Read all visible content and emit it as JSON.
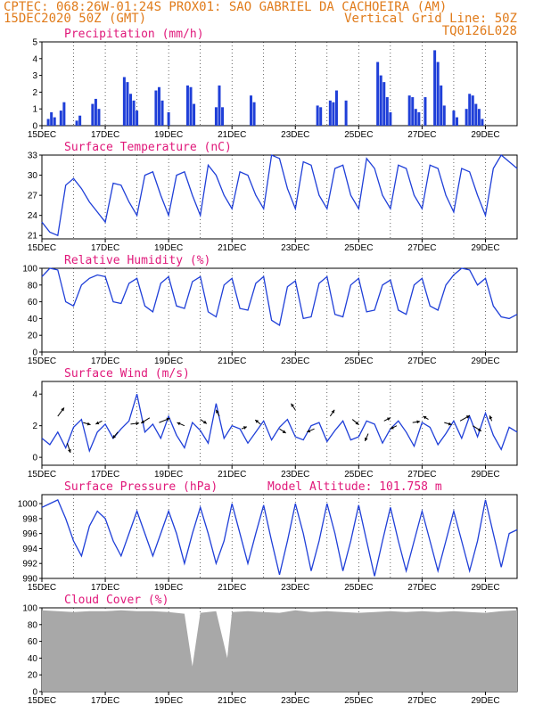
{
  "header": {
    "line1_left": "CPTEC:  068:26W-01:24S  PROX01: SAO GABRIEL DA CACHOEIRA (AM)",
    "line2_left": "15DEC2020 50Z (GMT)",
    "line2_right": "Vertical Grid Line: 50Z",
    "line3_right": "TQ0126L028"
  },
  "colors": {
    "header": "#e07b1a",
    "panel_title": "#e0187a",
    "series": "#1f3fd8",
    "cloud": "#a8a8a8",
    "grid": "#000000"
  },
  "x_axis": {
    "ticks": [
      "15DEC",
      "17DEC",
      "19DEC",
      "21DEC",
      "23DEC",
      "25DEC",
      "27DEC",
      "29DEC"
    ],
    "start_day": 15,
    "end_day": 30
  },
  "chart_data": [
    {
      "id": "precipitation",
      "type": "bar",
      "title": "Precipitation (mm/h)",
      "ylim": [
        0,
        5
      ],
      "yticks": [
        0,
        1,
        2,
        3,
        4,
        5
      ],
      "x": [
        15.2,
        15.3,
        15.4,
        15.6,
        15.7,
        16.1,
        16.2,
        16.6,
        16.7,
        16.8,
        17.6,
        17.7,
        17.8,
        17.9,
        18.0,
        18.6,
        18.7,
        18.8,
        19.0,
        19.6,
        19.7,
        19.8,
        20.5,
        20.6,
        20.7,
        21.6,
        21.7,
        23.7,
        23.8,
        24.1,
        24.2,
        24.3,
        24.6,
        25.6,
        25.7,
        25.8,
        25.9,
        26.0,
        26.6,
        26.7,
        26.8,
        26.9,
        27.1,
        27.4,
        27.5,
        27.6,
        27.7,
        28.0,
        28.1,
        28.4,
        28.5,
        28.6,
        28.7,
        28.8,
        28.9
      ],
      "values": [
        0.4,
        0.8,
        0.5,
        0.9,
        1.4,
        0.3,
        0.6,
        1.3,
        1.6,
        1.0,
        2.9,
        2.6,
        1.9,
        1.5,
        0.9,
        2.1,
        2.3,
        1.5,
        0.8,
        2.4,
        2.3,
        1.3,
        1.1,
        2.4,
        1.1,
        1.8,
        1.4,
        1.2,
        1.1,
        1.5,
        1.4,
        2.1,
        1.5,
        3.8,
        3.0,
        2.6,
        1.7,
        0.8,
        1.8,
        1.7,
        1.0,
        0.8,
        1.7,
        4.5,
        3.8,
        2.4,
        1.2,
        0.9,
        0.5,
        1.0,
        1.9,
        1.8,
        1.3,
        1.0,
        0.4
      ]
    },
    {
      "id": "surface_temperature",
      "type": "line",
      "title": "Surface Temperature (nC)",
      "ylim": [
        20.5,
        33
      ],
      "yticks": [
        21,
        24,
        27,
        30,
        33
      ],
      "x": [
        15.0,
        15.25,
        15.5,
        15.75,
        16.0,
        16.25,
        16.5,
        16.75,
        17.0,
        17.25,
        17.5,
        17.75,
        18.0,
        18.25,
        18.5,
        18.75,
        19.0,
        19.25,
        19.5,
        19.75,
        20.0,
        20.25,
        20.5,
        20.75,
        21.0,
        21.25,
        21.5,
        21.75,
        22.0,
        22.25,
        22.5,
        22.75,
        23.0,
        23.25,
        23.5,
        23.75,
        24.0,
        24.25,
        24.5,
        24.75,
        25.0,
        25.25,
        25.5,
        25.75,
        26.0,
        26.25,
        26.5,
        26.75,
        27.0,
        27.25,
        27.5,
        27.75,
        28.0,
        28.25,
        28.5,
        28.75,
        29.0,
        29.25,
        29.5,
        29.75,
        30.0
      ],
      "values": [
        23,
        21.5,
        21,
        28.5,
        29.5,
        28,
        26,
        24.5,
        23,
        28.8,
        28.5,
        26,
        24,
        30,
        30.5,
        27,
        24,
        30,
        30.5,
        27,
        24,
        31.5,
        30,
        27,
        25,
        30.5,
        30,
        27,
        25,
        33,
        32.5,
        28,
        25,
        32,
        31.5,
        27,
        25,
        31,
        31.5,
        27,
        25,
        32.5,
        31,
        27,
        25,
        31.5,
        31,
        27,
        25,
        31.5,
        31,
        27,
        24.5,
        31,
        30.5,
        27,
        24,
        31,
        33,
        32,
        31
      ]
    },
    {
      "id": "relative_humidity",
      "type": "line",
      "title": "Relative Humidity (%)",
      "ylim": [
        0,
        100
      ],
      "yticks": [
        0,
        20,
        40,
        60,
        80,
        100
      ],
      "x": [
        15.0,
        15.25,
        15.5,
        15.75,
        16.0,
        16.25,
        16.5,
        16.75,
        17.0,
        17.25,
        17.5,
        17.75,
        18.0,
        18.25,
        18.5,
        18.75,
        19.0,
        19.25,
        19.5,
        19.75,
        20.0,
        20.25,
        20.5,
        20.75,
        21.0,
        21.25,
        21.5,
        21.75,
        22.0,
        22.25,
        22.5,
        22.75,
        23.0,
        23.25,
        23.5,
        23.75,
        24.0,
        24.25,
        24.5,
        24.75,
        25.0,
        25.25,
        25.5,
        25.75,
        26.0,
        26.25,
        26.5,
        26.75,
        27.0,
        27.25,
        27.5,
        27.75,
        28.0,
        28.25,
        28.5,
        28.75,
        29.0,
        29.25,
        29.5,
        29.75,
        30.0
      ],
      "values": [
        90,
        100,
        98,
        60,
        55,
        80,
        88,
        92,
        90,
        60,
        58,
        82,
        88,
        55,
        48,
        82,
        90,
        55,
        52,
        84,
        90,
        48,
        42,
        80,
        88,
        52,
        50,
        82,
        90,
        38,
        32,
        78,
        85,
        40,
        42,
        82,
        90,
        45,
        42,
        80,
        88,
        48,
        50,
        80,
        86,
        50,
        45,
        80,
        88,
        55,
        50,
        80,
        92,
        100,
        98,
        80,
        88,
        55,
        42,
        40,
        45
      ]
    },
    {
      "id": "surface_wind",
      "type": "line",
      "title": "Surface Wind (m/s)",
      "ylim": [
        -0.5,
        4.8
      ],
      "yticks": [
        0,
        2,
        4
      ],
      "x": [
        15.0,
        15.25,
        15.5,
        15.75,
        16.0,
        16.25,
        16.5,
        16.75,
        17.0,
        17.25,
        17.5,
        17.75,
        18.0,
        18.25,
        18.5,
        18.75,
        19.0,
        19.25,
        19.5,
        19.75,
        20.0,
        20.25,
        20.5,
        20.75,
        21.0,
        21.25,
        21.5,
        21.75,
        22.0,
        22.25,
        22.5,
        22.75,
        23.0,
        23.25,
        23.5,
        23.75,
        24.0,
        24.25,
        24.5,
        24.75,
        25.0,
        25.25,
        25.5,
        25.75,
        26.0,
        26.25,
        26.5,
        26.75,
        27.0,
        27.25,
        27.5,
        27.75,
        28.0,
        28.25,
        28.5,
        28.75,
        29.0,
        29.25,
        29.5,
        29.75,
        30.0
      ],
      "values": [
        1.2,
        0.8,
        1.6,
        0.6,
        1.9,
        2.4,
        0.4,
        1.6,
        2.1,
        1.2,
        1.8,
        2.3,
        4.0,
        1.6,
        2.1,
        1.2,
        2.6,
        1.4,
        0.6,
        2.2,
        1.7,
        0.9,
        3.4,
        1.2,
        2.0,
        1.8,
        0.9,
        1.6,
        2.3,
        1.1,
        1.9,
        2.4,
        1.3,
        1.1,
        2.0,
        2.2,
        1.0,
        1.7,
        2.3,
        1.1,
        1.3,
        2.3,
        2.1,
        0.9,
        1.8,
        2.3,
        1.6,
        0.7,
        2.2,
        1.9,
        0.8,
        1.5,
        2.3,
        1.2,
        2.6,
        1.3,
        2.8,
        1.4,
        0.5,
        1.9,
        1.6
      ],
      "arrows": [
        {
          "x": 15.5,
          "y": 2.6,
          "dx": 0.6,
          "dy": -0.8
        },
        {
          "x": 15.8,
          "y": 0.9,
          "dx": 0.3,
          "dy": 0.9
        },
        {
          "x": 16.3,
          "y": 2.2,
          "dx": 0.7,
          "dy": 0.2
        },
        {
          "x": 16.9,
          "y": 2.3,
          "dx": -0.6,
          "dy": 0.3
        },
        {
          "x": 17.4,
          "y": 1.6,
          "dx": -0.5,
          "dy": 0.6
        },
        {
          "x": 17.8,
          "y": 2.1,
          "dx": 0.8,
          "dy": -0.1
        },
        {
          "x": 18.4,
          "y": 2.5,
          "dx": -0.8,
          "dy": 0.5
        },
        {
          "x": 18.7,
          "y": 2.2,
          "dx": 1.0,
          "dy": -0.4
        },
        {
          "x": 19.5,
          "y": 2.0,
          "dx": -0.7,
          "dy": -0.3
        },
        {
          "x": 20.0,
          "y": 2.4,
          "dx": 0.6,
          "dy": 0.4
        },
        {
          "x": 20.6,
          "y": 2.6,
          "dx": -0.3,
          "dy": -0.6
        },
        {
          "x": 21.3,
          "y": 1.8,
          "dx": 0.5,
          "dy": -0.2
        },
        {
          "x": 21.9,
          "y": 2.1,
          "dx": -0.5,
          "dy": -0.4
        },
        {
          "x": 22.5,
          "y": 1.8,
          "dx": 0.6,
          "dy": 0.4
        },
        {
          "x": 23.0,
          "y": 3.0,
          "dx": -0.4,
          "dy": -0.6
        },
        {
          "x": 23.6,
          "y": 1.8,
          "dx": -0.7,
          "dy": 0.3
        },
        {
          "x": 24.1,
          "y": 2.6,
          "dx": 0.4,
          "dy": -0.6
        },
        {
          "x": 24.8,
          "y": 2.4,
          "dx": 0.6,
          "dy": 0.5
        },
        {
          "x": 25.3,
          "y": 1.5,
          "dx": -0.3,
          "dy": 0.7
        },
        {
          "x": 25.8,
          "y": 2.3,
          "dx": 0.6,
          "dy": -0.3
        },
        {
          "x": 26.2,
          "y": 2.0,
          "dx": -0.6,
          "dy": 0.3
        },
        {
          "x": 26.7,
          "y": 2.2,
          "dx": 0.7,
          "dy": -0.1
        },
        {
          "x": 27.2,
          "y": 2.4,
          "dx": -0.5,
          "dy": -0.3
        },
        {
          "x": 27.7,
          "y": 2.2,
          "dx": 0.7,
          "dy": 0.2
        },
        {
          "x": 28.2,
          "y": 2.3,
          "dx": 0.9,
          "dy": -0.5
        },
        {
          "x": 28.6,
          "y": 2.0,
          "dx": 0.8,
          "dy": 0.5
        },
        {
          "x": 29.2,
          "y": 2.3,
          "dx": -0.2,
          "dy": -0.5
        }
      ]
    },
    {
      "id": "surface_pressure",
      "type": "line",
      "title": "Surface Pressure (hPa)",
      "annotation": "Model Altitude: 101.758 m",
      "ylim": [
        990,
        1001.2
      ],
      "yticks": [
        990,
        992,
        994,
        996,
        998,
        1000
      ],
      "x": [
        15.0,
        15.25,
        15.5,
        15.75,
        16.0,
        16.25,
        16.5,
        16.75,
        17.0,
        17.25,
        17.5,
        17.75,
        18.0,
        18.25,
        18.5,
        18.75,
        19.0,
        19.25,
        19.5,
        19.75,
        20.0,
        20.25,
        20.5,
        20.75,
        21.0,
        21.25,
        21.5,
        21.75,
        22.0,
        22.25,
        22.5,
        22.75,
        23.0,
        23.25,
        23.5,
        23.75,
        24.0,
        24.25,
        24.5,
        24.75,
        25.0,
        25.25,
        25.5,
        25.75,
        26.0,
        26.25,
        26.5,
        26.75,
        27.0,
        27.25,
        27.5,
        27.75,
        28.0,
        28.25,
        28.5,
        28.75,
        29.0,
        29.25,
        29.5,
        29.75,
        30.0
      ],
      "values": [
        999.5,
        1000,
        1000.5,
        998,
        995,
        993,
        997,
        999,
        998,
        995,
        993,
        996,
        999,
        996,
        993,
        996,
        999,
        996,
        992,
        996,
        999.5,
        996,
        992,
        995,
        1000,
        996,
        992,
        996,
        999.8,
        995,
        990.5,
        995,
        1000,
        996,
        991,
        995,
        1000,
        996,
        991,
        995,
        999.8,
        995,
        990.3,
        995,
        999.5,
        995,
        991,
        995,
        999,
        995,
        991,
        995,
        999,
        995,
        991,
        995,
        1000.5,
        996,
        991.5,
        996,
        996.5
      ]
    },
    {
      "id": "cloud_cover",
      "type": "area",
      "title": "Cloud Cover (%)",
      "ylim": [
        0,
        100
      ],
      "yticks": [
        0,
        20,
        40,
        60,
        80,
        100
      ],
      "x": [
        15.0,
        15.5,
        16.0,
        16.5,
        17.0,
        17.5,
        18.0,
        18.5,
        19.0,
        19.5,
        19.75,
        20.0,
        20.5,
        20.85,
        21.0,
        21.5,
        22.0,
        22.5,
        23.0,
        23.5,
        24.0,
        24.5,
        25.0,
        25.5,
        26.0,
        26.5,
        27.0,
        27.5,
        28.0,
        28.5,
        29.0,
        29.5,
        30.0
      ],
      "values": [
        97,
        96,
        95,
        96,
        96,
        97,
        96,
        96,
        95,
        93,
        30,
        94,
        96,
        40,
        95,
        96,
        95,
        94,
        97,
        95,
        96,
        95,
        94,
        95,
        96,
        95,
        96,
        95,
        96,
        95,
        94,
        96,
        97
      ]
    }
  ]
}
